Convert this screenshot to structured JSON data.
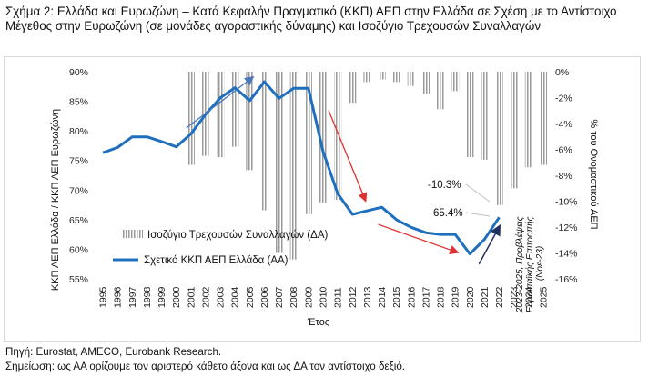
{
  "title": "Σχήμα 2: Ελλάδα και Ευρωζώνη – Κατά Κεφαλήν Πραγματικό (ΚΚΠ) ΑΕΠ στην Ελλάδα σε Σχέση με το Αντίστοιχο Μέγεθος στην Ευρωζώνη (σε μονάδες αγοραστικής δύναμης) και Ισοζύγιο Τρεχουσών Συναλλαγών",
  "footer": {
    "source": "Πηγή: Eurostat, AMECO, Eurobank Research.",
    "note": "Σημείωση: ως ΑΑ ορίζουμε τον αριστερό κάθετο άξονα και ως ΔΑ τον αντίστοιχο δεξιό."
  },
  "chart_data": {
    "type": "bar+line",
    "xlabel": "Έτος",
    "ylabel_left": "ΚΚΠ ΑΕΠ Ελλάδα / ΚΚΠ ΑΕΠ Ευρωζώνη",
    "ylabel_right": "% του Ονομαστικού ΑΕΠ",
    "categories": [
      "1995",
      "1996",
      "1997",
      "1998",
      "1999",
      "2000",
      "2001",
      "2002",
      "2003",
      "2004",
      "2005",
      "2006",
      "2007",
      "2008",
      "2009",
      "2010",
      "2011",
      "2012",
      "2013",
      "2014",
      "2015",
      "2016",
      "2017",
      "2018",
      "2019",
      "2020",
      "2021",
      "2022",
      "2023",
      "2024",
      "2025"
    ],
    "left_axis": {
      "min": 55,
      "max": 90,
      "ticks": [
        "55%",
        "60%",
        "65%",
        "70%",
        "75%",
        "80%",
        "85%",
        "90%"
      ]
    },
    "right_axis": {
      "min": -16,
      "max": 0,
      "ticks": [
        "-16%",
        "-14%",
        "-12%",
        "-10%",
        "-8%",
        "-6%",
        "-4%",
        "-2%",
        "0%"
      ]
    },
    "series": [
      {
        "name": "Ισοζύγιο Τρεχουσών Συναλλαγών (ΔΑ)",
        "type": "bar",
        "pattern": "hatched",
        "axis": "right",
        "values": [
          null,
          null,
          null,
          null,
          null,
          null,
          -7.2,
          -6.5,
          -6.6,
          -5.8,
          -7.6,
          -10.7,
          -14.0,
          -14.5,
          -11.0,
          -10.1,
          -9.9,
          -2.4,
          -0.8,
          -0.6,
          -0.8,
          -1.1,
          -1.7,
          -2.9,
          -1.5,
          -6.6,
          -6.8,
          -10.3,
          -9.0,
          -7.4,
          -7.2
        ]
      },
      {
        "name": "Σχετικό ΚΚΠ ΑΕΠ Ελλάδα (ΑΑ)",
        "type": "line",
        "axis": "left",
        "values": [
          76.3,
          77.2,
          79.0,
          79.0,
          78.2,
          77.3,
          79.5,
          82.8,
          85.6,
          87.3,
          85.1,
          88.3,
          85.5,
          87.2,
          87.2,
          76.5,
          69.4,
          65.9,
          66.5,
          67.1,
          65.0,
          63.7,
          62.8,
          62.5,
          62.5,
          59.2,
          61.7,
          65.4,
          null,
          null,
          null
        ]
      }
    ],
    "annotations": [
      {
        "text": "-10.3%"
      },
      {
        "text": "65.4%"
      },
      {
        "text": "2023-2025, Προβλέψεις Ευρωπαϊκής Επιτροπής (Νοε-23)"
      }
    ],
    "legend_position": "left-center",
    "grid": false
  },
  "colors": {
    "line": "#1f6fbf",
    "bar_hatch": "#9a9a9a",
    "forecast_bar": "#7f7f7f",
    "arrow_red": "#e03030",
    "arrow_blue": "#4a78b8",
    "arrow_navy": "#1f3060"
  }
}
